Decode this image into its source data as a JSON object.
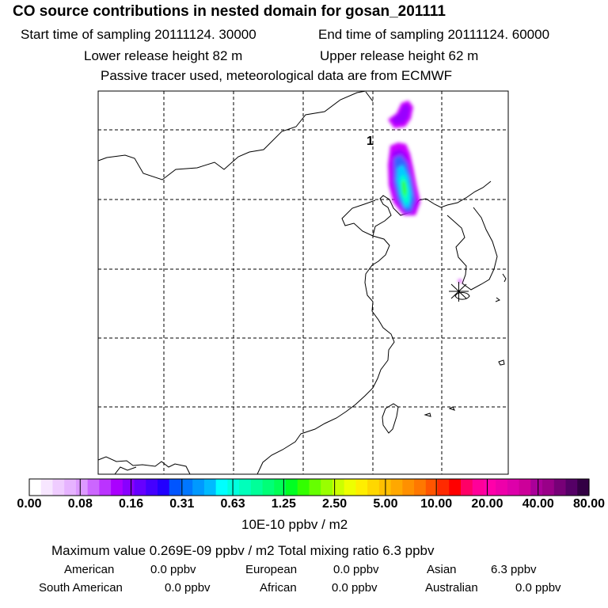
{
  "title": "CO  source contributions in nested domain for gosan_201111",
  "header": {
    "start_label": "Start time of sampling 20111124. 30000",
    "end_label": "End time of sampling 20111124. 60000",
    "lower_release": "Lower release height   82 m",
    "upper_release": "Upper release height   62 m",
    "tracer_note": "Passive tracer used, meteorological data are from ECMWF"
  },
  "map": {
    "marker_label": "1",
    "receptor_icon": "asterisk-icon",
    "plume_colors": [
      "#cc00ff",
      "#9900ff",
      "#3366ff",
      "#00ccff",
      "#00ffcc",
      "#33ff33",
      "#ccff00"
    ]
  },
  "chart_data": {
    "type": "heatmap",
    "title": "CO  source contributions in nested domain for gosan_201111",
    "colorbar": {
      "label": "10E-10 ppbv / m2",
      "tick_labels": [
        "0.00",
        "0.08",
        "0.16",
        "0.31",
        "0.63",
        "1.25",
        "2.50",
        "5.00",
        "10.00",
        "20.00",
        "40.00",
        "80.00"
      ],
      "tick_values": [
        0.0,
        0.08,
        0.16,
        0.31,
        0.63,
        1.25,
        2.5,
        5.0,
        10.0,
        20.0,
        40.0,
        80.0
      ],
      "colors": [
        "#ffffff",
        "#f7e6ff",
        "#efccff",
        "#e6b3ff",
        "#dd99ff",
        "#cc66ff",
        "#bb33ff",
        "#aa00ff",
        "#8800ff",
        "#6600ff",
        "#4400ff",
        "#2200ff",
        "#0055ff",
        "#0077ff",
        "#0099ff",
        "#00bbff",
        "#00ffff",
        "#00ffdd",
        "#00ffbb",
        "#00ff99",
        "#00ff77",
        "#00ff55",
        "#00ff22",
        "#33ff00",
        "#66ff00",
        "#99ff00",
        "#ccff00",
        "#eeff00",
        "#ffee00",
        "#ffd700",
        "#ffc000",
        "#ffa800",
        "#ff9000",
        "#ff7800",
        "#ff5500",
        "#ff2a00",
        "#ff0000",
        "#ff0066",
        "#ff0099",
        "#ff00aa",
        "#ee00aa",
        "#dd00aa",
        "#cc0099",
        "#aa0099",
        "#990088",
        "#770077",
        "#550066",
        "#330044"
      ]
    },
    "annotation": "Maximum value  0.269E-09 ppbv / m2    Total mixing ratio      6.3 ppbv",
    "region_contributions": [
      {
        "region": "American",
        "value": "0.0 ppbv"
      },
      {
        "region": "European",
        "value": "0.0 ppbv"
      },
      {
        "region": "Asian",
        "value": "6.3 ppbv"
      },
      {
        "region": "South American",
        "value": "0.0 ppbv"
      },
      {
        "region": "African",
        "value": "0.0 ppbv"
      },
      {
        "region": "Australian",
        "value": "0.0 ppbv"
      }
    ]
  }
}
